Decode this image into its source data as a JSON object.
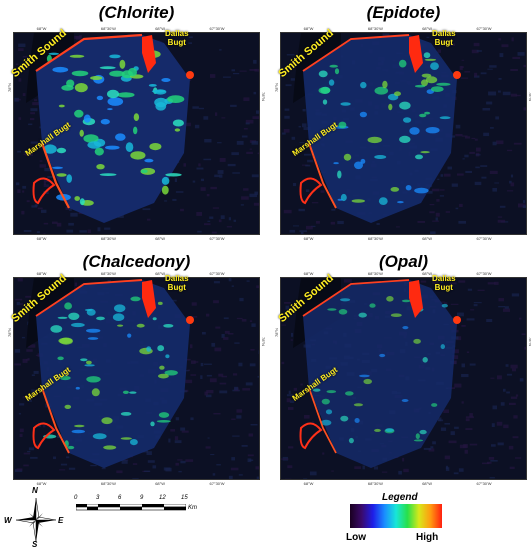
{
  "panels": [
    {
      "title": "(Chlorite)",
      "top_ticks": [
        "68°W",
        "68°30'W",
        "68°W",
        "67°30'W"
      ],
      "bottom_ticks": [
        "68°W",
        "68°30'W",
        "68°W",
        "67°30'W"
      ],
      "left_tick": "78°N",
      "right_tick": "78°N",
      "labels": {
        "smith": "Smith Sound",
        "dallas": "Dallas\nBugt",
        "marshall": "Marshall Bugt"
      },
      "abundance": "high"
    },
    {
      "title": "(Epidote)",
      "top_ticks": [
        "68°W",
        "68°30'W",
        "68°W",
        "67°30'W"
      ],
      "bottom_ticks": [
        "68°W",
        "68°30'W",
        "68°W",
        "67°30'W"
      ],
      "left_tick": "78°N",
      "right_tick": "78°N",
      "labels": {
        "smith": "Smith Sound",
        "dallas": "Dallas\nBugt",
        "marshall": "Marshall Bugt"
      },
      "abundance": "medium"
    },
    {
      "title": "(Chalcedony)",
      "top_ticks": [
        "68°W",
        "68°30'W",
        "68°W",
        "67°30'W"
      ],
      "bottom_ticks": [
        "68°W",
        "68°30'W",
        "68°W",
        "67°30'W"
      ],
      "left_tick": "78°N",
      "right_tick": "78°N",
      "labels": {
        "smith": "Smith Sound",
        "dallas": "Dallas\nBugt",
        "marshall": "Marshall Bugt"
      },
      "abundance": "medium"
    },
    {
      "title": "(Opal)",
      "top_ticks": [
        "68°W",
        "68°30'W",
        "68°W",
        "67°30'W"
      ],
      "bottom_ticks": [
        "68°W",
        "68°30'W",
        "68°W",
        "67°30'W"
      ],
      "left_tick": "78°N",
      "right_tick": "78°N",
      "labels": {
        "smith": "Smith Sound",
        "dallas": "Dallas\nBugt",
        "marshall": "Marshall Bugt"
      },
      "abundance": "low"
    }
  ],
  "compass": {
    "n": "N",
    "s": "S",
    "e": "E",
    "w": "W"
  },
  "scale_bar": {
    "ticks": [
      "0",
      "3",
      "6",
      "9",
      "12",
      "15"
    ],
    "unit": "Km"
  },
  "legend": {
    "title": "Legend",
    "low": "Low",
    "high": "High",
    "gradient_colors": [
      "#1a0020",
      "#3a0a6a",
      "#1e1ee8",
      "#1a8cff",
      "#18e6d8",
      "#28e04a",
      "#d8e81a",
      "#ff9a10",
      "#ff2010"
    ]
  },
  "colors": {
    "background": "#0b0d1c",
    "label": "#ffee22"
  }
}
